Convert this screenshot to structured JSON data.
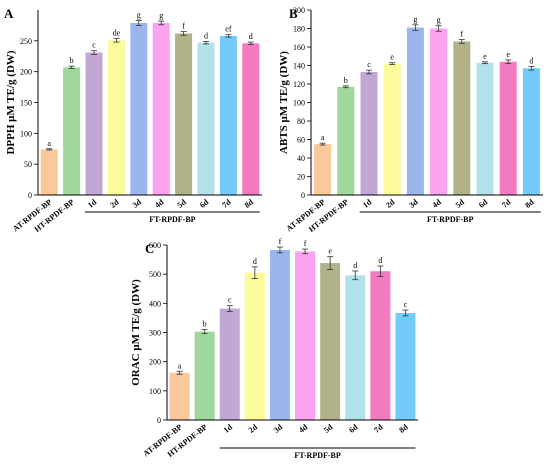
{
  "chart_data": [
    {
      "panel": "A",
      "type": "bar",
      "ylabel": "DPPH μM TE/g (DW)",
      "ylim": [
        0,
        300
      ],
      "yticks": [
        0,
        50,
        100,
        150,
        200,
        250
      ],
      "categories": [
        "AT-RPDF-BP",
        "HT-RPDF-BP",
        "1d",
        "2d",
        "3d",
        "4d",
        "5d",
        "6d",
        "7d",
        "8d"
      ],
      "values": [
        74,
        207,
        231,
        251,
        279,
        279,
        262,
        247,
        258,
        246
      ],
      "errors": [
        1,
        2,
        3,
        3,
        4,
        3,
        3,
        2,
        2,
        2
      ],
      "significance": [
        "a",
        "b",
        "c",
        "de",
        "g",
        "g",
        "f",
        "d",
        "ef",
        "d"
      ],
      "group_label": "FT-RPDF-BP",
      "colors": [
        "#f9c89b",
        "#9fd89a",
        "#c0a7d6",
        "#fbfb9c",
        "#9bb6ec",
        "#fca3f0",
        "#b1b28a",
        "#b1e2e9",
        "#74cbfa",
        "#f47ac0"
      ]
    },
    {
      "panel": "B",
      "type": "bar",
      "ylabel": "ABTS μM TE/g (DW)",
      "ylim": [
        0,
        200
      ],
      "yticks": [
        0,
        20,
        40,
        60,
        80,
        100,
        120,
        140,
        160,
        180,
        200
      ],
      "categories": [
        "AT-RPDF-BP",
        "HT-RPDF-BP",
        "1d",
        "2d",
        "3d",
        "4d",
        "5d",
        "6d",
        "7d",
        "8d"
      ],
      "values": [
        55,
        117,
        133,
        142,
        181,
        180,
        166,
        143,
        144,
        137
      ],
      "errors": [
        1,
        1,
        2,
        1,
        3,
        3,
        2,
        1,
        2,
        2
      ],
      "significance": [
        "a",
        "b",
        "c",
        "e",
        "g",
        "g",
        "f",
        "e",
        "e",
        "d"
      ],
      "group_label": "FT-RPDF-BP",
      "colors": [
        "#f9c89b",
        "#9fd89a",
        "#c0a7d6",
        "#fbfb9c",
        "#9bb6ec",
        "#fca3f0",
        "#b1b28a",
        "#b1e2e9",
        "#f47ac0",
        "#74cbfa"
      ]
    },
    {
      "panel": "C",
      "type": "bar",
      "ylabel": "ORAC μM TE/g (DW)",
      "ylim": [
        0,
        600
      ],
      "yticks": [
        0,
        100,
        200,
        300,
        400,
        500,
        600
      ],
      "categories": [
        "AT-RPDF-BP",
        "HT-RPDF-BP",
        "1d",
        "2d",
        "3d",
        "4d",
        "5d",
        "6d",
        "7d",
        "8d"
      ],
      "values": [
        162,
        303,
        382,
        505,
        583,
        578,
        538,
        496,
        510,
        367
      ],
      "errors": [
        5,
        7,
        10,
        20,
        10,
        8,
        22,
        15,
        18,
        10
      ],
      "significance": [
        "a",
        "b",
        "c",
        "d",
        "f",
        "f",
        "e",
        "d",
        "d",
        "c"
      ],
      "group_label": "FT-RPDF-BP",
      "colors": [
        "#f9c89b",
        "#9fd89a",
        "#c0a7d6",
        "#fbfb9c",
        "#9bb6ec",
        "#fca3f0",
        "#b1b28a",
        "#b1e2e9",
        "#f47ac0",
        "#74cbfa"
      ]
    }
  ]
}
